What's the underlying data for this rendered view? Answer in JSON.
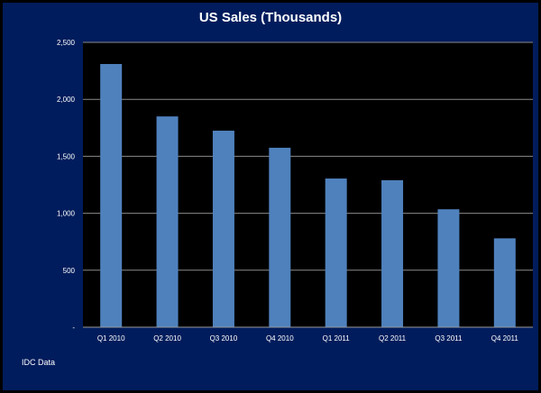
{
  "chart_data": {
    "type": "bar",
    "title": "US Sales (Thousands)",
    "categories": [
      "Q1 2010",
      "Q2 2010",
      "Q3 2010",
      "Q4 2010",
      "Q1 2011",
      "Q2 2011",
      "Q3 2011",
      "Q4 2011"
    ],
    "values": [
      2310,
      1850,
      1725,
      1575,
      1305,
      1290,
      1035,
      780
    ],
    "ylim": [
      0,
      2500
    ],
    "y_ticks": [
      0,
      500,
      1000,
      1500,
      2000,
      2500
    ],
    "y_tick_labels": [
      "-",
      "500",
      "1,000",
      "1,500",
      "2,000",
      "2,500"
    ],
    "grid": true,
    "xlabel": "",
    "ylabel": "",
    "bar_color": "#4f81bd",
    "plot_background": "#000000",
    "background": "#001c5c"
  },
  "footer": {
    "source": "IDC Data"
  }
}
